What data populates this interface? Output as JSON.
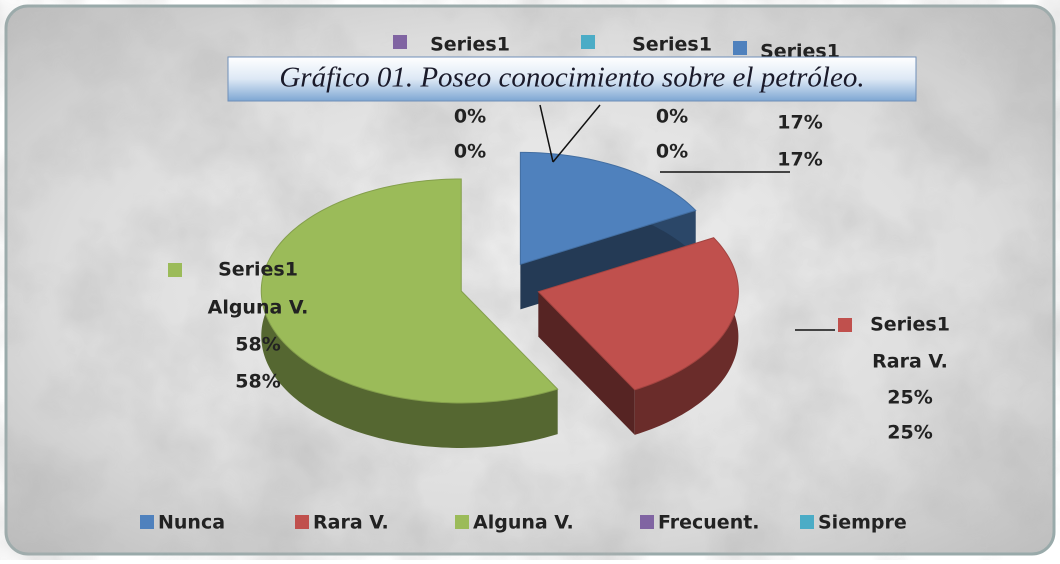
{
  "chart_data": {
    "type": "pie",
    "title": "Gráfico 01.  Poseo conocimiento sobre  el petróleo.",
    "categories": [
      "Nunca",
      "Rara V.",
      "Alguna V.",
      "Frecuent.",
      "Siempre"
    ],
    "colors": [
      "#4f81bd",
      "#c0504d",
      "#9bbb59",
      "#8064a2",
      "#4bacc6"
    ],
    "series": [
      {
        "name": "Series1",
        "values": [
          17,
          25,
          58,
          0,
          0
        ],
        "value_labels": [
          "17%",
          "25%",
          "58%",
          "0%",
          "0%"
        ]
      }
    ],
    "legend": "bottom"
  }
}
